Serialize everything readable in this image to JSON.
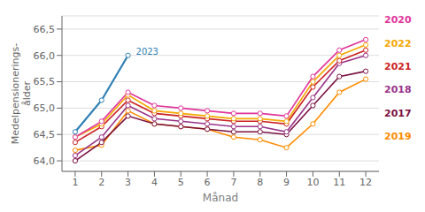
{
  "chart_data": {
    "type": "line",
    "xlabel": "Månad",
    "ylabel": "Medelpensionerings-\nålder",
    "x": [
      1,
      2,
      3,
      4,
      5,
      6,
      7,
      8,
      9,
      10,
      11,
      12
    ],
    "xlim": [
      0.5,
      12.5
    ],
    "xticks": [
      1,
      2,
      3,
      4,
      5,
      6,
      7,
      8,
      9,
      10,
      11,
      12
    ],
    "ylim": [
      63.8,
      66.75
    ],
    "yticks": [
      {
        "value": 64.0,
        "label": "64,0"
      },
      {
        "value": 64.5,
        "label": "64,5"
      },
      {
        "value": 65.0,
        "label": "65,0"
      },
      {
        "value": 65.5,
        "label": "65,5"
      },
      {
        "value": 66.0,
        "label": "66,0"
      },
      {
        "value": 66.5,
        "label": "66,5"
      }
    ],
    "grid": true,
    "marker": "o",
    "series": [
      {
        "name": "2019",
        "color": "#ff8c00",
        "values": [
          64.2,
          64.3,
          64.95,
          64.7,
          64.65,
          64.6,
          64.45,
          64.4,
          64.25,
          64.7,
          65.3,
          65.55
        ]
      },
      {
        "name": "2017",
        "color": "#7a1040",
        "values": [
          64.0,
          64.35,
          64.85,
          64.7,
          64.65,
          64.6,
          64.55,
          64.55,
          64.5,
          65.05,
          65.6,
          65.7
        ]
      },
      {
        "name": "2018",
        "color": "#993388",
        "values": [
          64.1,
          64.45,
          65.05,
          64.8,
          64.75,
          64.7,
          64.65,
          64.65,
          64.55,
          65.2,
          65.85,
          66.0
        ]
      },
      {
        "name": "2021",
        "color": "#cc2222",
        "values": [
          64.35,
          64.65,
          65.15,
          64.9,
          64.85,
          64.8,
          64.75,
          64.75,
          64.7,
          65.4,
          65.9,
          66.1
        ]
      },
      {
        "name": "2022",
        "color": "#f5a800",
        "values": [
          64.45,
          64.7,
          65.25,
          64.95,
          64.9,
          64.85,
          64.8,
          64.8,
          64.75,
          65.5,
          66.0,
          66.2
        ]
      },
      {
        "name": "2020",
        "color": "#e0359a",
        "values": [
          64.45,
          64.75,
          65.3,
          65.05,
          65.0,
          64.95,
          64.9,
          64.9,
          64.85,
          65.6,
          66.1,
          66.3
        ]
      },
      {
        "name": "2023",
        "color": "#2e7fb5",
        "values": [
          64.55,
          65.15,
          66.0,
          null,
          null,
          null,
          null,
          null,
          null,
          null,
          null,
          null
        ]
      }
    ],
    "annotations": [
      {
        "text": "2023",
        "x": 3.3,
        "y": 66.02
      },
      {
        "text": "2020"
      },
      {
        "text": "2022"
      },
      {
        "text": "2021"
      },
      {
        "text": "2018"
      },
      {
        "text": "2017"
      },
      {
        "text": "2019"
      }
    ]
  }
}
